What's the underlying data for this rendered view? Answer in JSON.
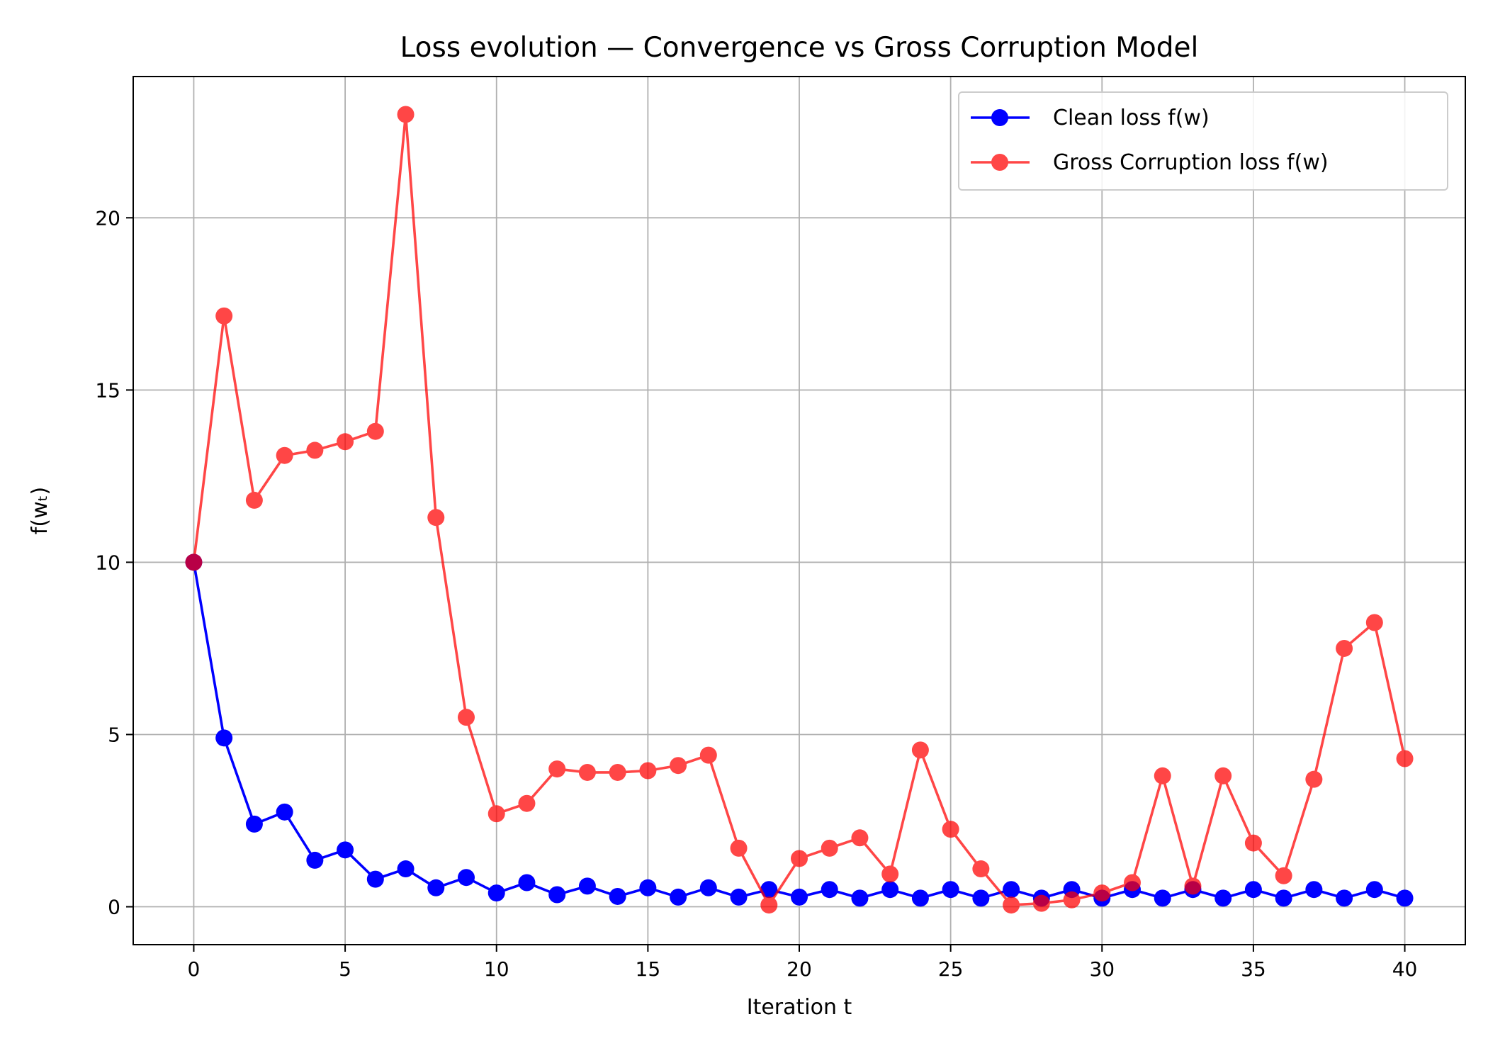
{
  "chart_data": {
    "type": "line",
    "title": "Loss evolution — Convergence vs Gross Corruption Model",
    "xlabel": "Iteration t",
    "ylabel": "f(wₜ)",
    "xlim": [
      -2,
      42
    ],
    "ylim": [
      -1.1,
      24.1
    ],
    "xticks": [
      0,
      5,
      10,
      15,
      20,
      25,
      30,
      35,
      40
    ],
    "yticks": [
      0,
      5,
      10,
      15,
      20
    ],
    "grid": true,
    "legend": "top-right",
    "x": [
      0,
      1,
      2,
      3,
      4,
      5,
      6,
      7,
      8,
      9,
      10,
      11,
      12,
      13,
      14,
      15,
      16,
      17,
      18,
      19,
      20,
      21,
      22,
      23,
      24,
      25,
      26,
      27,
      28,
      29,
      30,
      31,
      32,
      33,
      34,
      35,
      36,
      37,
      38,
      39,
      40
    ],
    "series": [
      {
        "name": "Clean loss f(w)",
        "color": "#0000ff",
        "alpha": 1.0,
        "values": [
          10.0,
          4.9,
          2.4,
          2.75,
          1.35,
          1.65,
          0.8,
          1.1,
          0.55,
          0.85,
          0.4,
          0.7,
          0.35,
          0.6,
          0.3,
          0.55,
          0.28,
          0.55,
          0.28,
          0.5,
          0.28,
          0.5,
          0.25,
          0.5,
          0.25,
          0.5,
          0.25,
          0.5,
          0.25,
          0.5,
          0.25,
          0.5,
          0.25,
          0.5,
          0.25,
          0.5,
          0.25,
          0.5,
          0.25,
          0.5,
          0.25
        ]
      },
      {
        "name": "Gross Corruption loss f(w)",
        "color": "#ff0000",
        "alpha": 0.72,
        "values": [
          10.0,
          17.15,
          11.8,
          13.1,
          13.25,
          13.5,
          13.8,
          23.0,
          11.3,
          5.5,
          2.7,
          3.0,
          4.0,
          3.9,
          3.9,
          3.95,
          4.1,
          4.4,
          1.7,
          0.05,
          1.4,
          1.7,
          2.0,
          0.95,
          4.55,
          2.25,
          1.1,
          0.05,
          0.1,
          0.2,
          0.4,
          0.7,
          3.8,
          0.6,
          3.8,
          1.85,
          0.9,
          3.7,
          7.5,
          8.25,
          4.3
        ]
      }
    ]
  }
}
